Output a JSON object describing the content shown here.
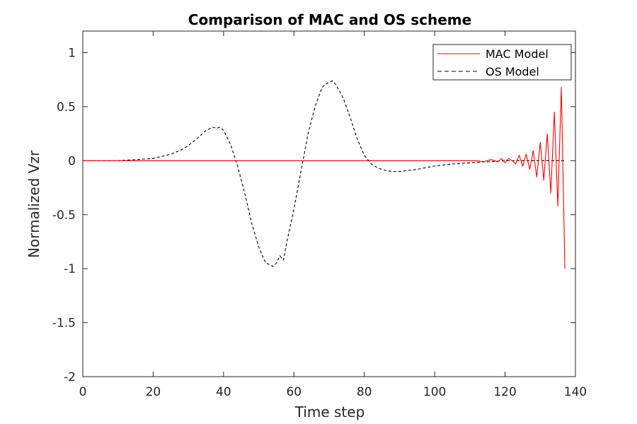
{
  "chart_data": {
    "type": "line",
    "title": "Comparison of MAC and OS scheme",
    "xlabel": "Time step",
    "ylabel": "Normalized Vzr",
    "xlim": [
      0,
      140
    ],
    "ylim": [
      -2,
      1.2
    ],
    "xticks": [
      0,
      20,
      40,
      60,
      80,
      100,
      120,
      140
    ],
    "yticks": [
      -2,
      -1.5,
      -1,
      -0.5,
      0,
      0.5,
      1
    ],
    "xtick_labels": [
      "0",
      "20",
      "40",
      "60",
      "80",
      "100",
      "120",
      "140"
    ],
    "ytick_labels": [
      "-2",
      "-1.5",
      "-1",
      "-0.5",
      "0",
      "0.5",
      "1"
    ],
    "grid": false,
    "legend_position": "top-right",
    "series": [
      {
        "name": "MAC Model",
        "color": "#ff0000",
        "style": "solid",
        "x": [
          0,
          110,
          112,
          114,
          116,
          118,
          119,
          120,
          121,
          122,
          123,
          124,
          125,
          126,
          127,
          128,
          129,
          130,
          131,
          132,
          133,
          134,
          135,
          136,
          137
        ],
        "y": [
          0,
          0,
          0,
          -0.01,
          0.01,
          -0.01,
          0.02,
          -0.02,
          0.02,
          0,
          -0.03,
          0.05,
          -0.05,
          0.06,
          -0.08,
          0.09,
          -0.15,
          0.17,
          -0.18,
          0.25,
          -0.3,
          0.45,
          -0.42,
          0.68,
          -1.0
        ]
      },
      {
        "name": "OS Model",
        "color": "#000000",
        "style": "dashed",
        "x": [
          0,
          5,
          10,
          15,
          20,
          25,
          28,
          30,
          33,
          35,
          37,
          38,
          39,
          40,
          42,
          44,
          46,
          48,
          50,
          52,
          53,
          54,
          55,
          56,
          57,
          58,
          60,
          62,
          64,
          66,
          68,
          70,
          71,
          72,
          74,
          76,
          78,
          80,
          82,
          84,
          86,
          88,
          90,
          95,
          100,
          105,
          110,
          115,
          120,
          122,
          124,
          126,
          128,
          130,
          132,
          134,
          136,
          137
        ],
        "y": [
          0,
          0,
          0,
          0.01,
          0.02,
          0.06,
          0.1,
          0.14,
          0.22,
          0.28,
          0.31,
          0.3,
          0.31,
          0.28,
          0.15,
          -0.05,
          -0.3,
          -0.58,
          -0.8,
          -0.95,
          -0.96,
          -0.98,
          -0.95,
          -0.88,
          -0.92,
          -0.75,
          -0.45,
          -0.1,
          0.25,
          0.5,
          0.68,
          0.73,
          0.74,
          0.7,
          0.58,
          0.4,
          0.2,
          0.05,
          -0.03,
          -0.07,
          -0.09,
          -0.1,
          -0.1,
          -0.08,
          -0.05,
          -0.03,
          -0.02,
          -0.01,
          0,
          0,
          0,
          0,
          0,
          0,
          0,
          0,
          0,
          0
        ]
      }
    ]
  }
}
